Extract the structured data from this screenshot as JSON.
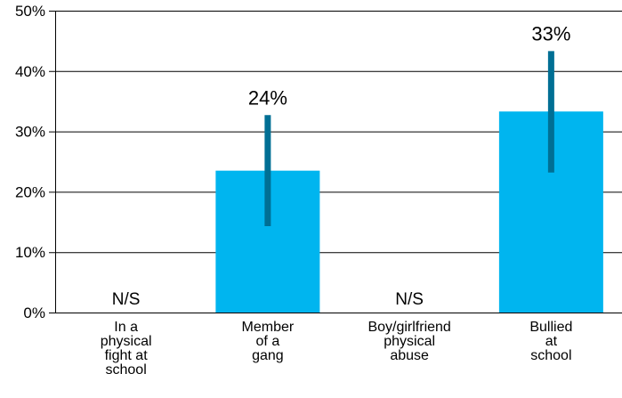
{
  "chart_data": {
    "type": "bar",
    "title": "",
    "xlabel": "",
    "ylabel": "",
    "ylim": [
      0,
      50
    ],
    "y_ticks": [
      0,
      10,
      20,
      30,
      40,
      50
    ],
    "y_tick_labels": [
      "0%",
      "10%",
      "20%",
      "30%",
      "40%",
      "50%"
    ],
    "grid": true,
    "categories": [
      [
        "In a",
        "physical",
        "fight at",
        "school"
      ],
      [
        "Member",
        "of a",
        "gang"
      ],
      [
        "Boy/girlfriend",
        "physical",
        "abuse"
      ],
      [
        "Bullied",
        "at",
        "school"
      ]
    ],
    "values": [
      null,
      23.5,
      null,
      33.3
    ],
    "error_bars": [
      null,
      [
        14.3,
        32.7
      ],
      null,
      [
        23.2,
        43.3
      ]
    ],
    "data_labels": [
      "N/S",
      "24%",
      "N/S",
      "33%"
    ],
    "colors": {
      "bar": "#00b5ef",
      "error_bar": "#006f94",
      "grid": "#000000",
      "text": "#000000"
    }
  }
}
